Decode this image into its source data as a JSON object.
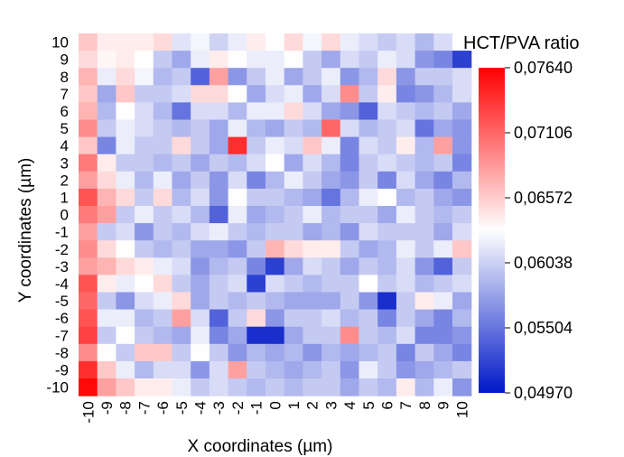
{
  "chart_data": {
    "type": "heatmap",
    "title": "",
    "xlabel": "X coordinates (µm)",
    "ylabel": "Y coordinates (µm)",
    "x": [
      "-10",
      "-9",
      "-8",
      "-7",
      "-6",
      "-5",
      "-4",
      "-3",
      "-2",
      "-1",
      "0",
      "1",
      "2",
      "3",
      "4",
      "5",
      "6",
      "7",
      "8",
      "9",
      "10"
    ],
    "y": [
      "10",
      "9",
      "8",
      "7",
      "6",
      "5",
      "4",
      "3",
      "2",
      "1",
      "0",
      "-1",
      "-2",
      "-3",
      "-4",
      "-5",
      "-6",
      "-7",
      "-8",
      "-9",
      "-10"
    ],
    "colorbar": {
      "title": "HCT/PVA ratio",
      "range": [
        0.0497,
        0.0764
      ],
      "ticks": [
        "0,07640",
        "0,07106",
        "0,06572",
        "0,06038",
        "0,05504",
        "0,04970"
      ],
      "colors": {
        "low": "#0018c8",
        "mid": "#ffffff",
        "high": "#ff0000"
      }
    },
    "grid": false,
    "legend": "right",
    "values": [
      [
        0.066,
        0.064,
        0.064,
        0.064,
        0.065,
        0.0615,
        0.0625,
        0.0605,
        0.062,
        0.064,
        0.063,
        0.065,
        0.0625,
        0.065,
        0.062,
        0.061,
        0.06,
        0.061,
        0.059,
        0.061,
        0.063
      ],
      [
        0.065,
        0.0635,
        0.064,
        0.063,
        0.06,
        0.058,
        0.062,
        0.064,
        0.063,
        0.062,
        0.062,
        0.063,
        0.06,
        0.058,
        0.061,
        0.06,
        0.062,
        0.061,
        0.057,
        0.056,
        0.052
      ],
      [
        0.067,
        0.062,
        0.065,
        0.0625,
        0.059,
        0.06,
        0.054,
        0.068,
        0.057,
        0.06,
        0.062,
        0.058,
        0.06,
        0.062,
        0.057,
        0.059,
        0.065,
        0.057,
        0.06,
        0.06,
        0.061
      ],
      [
        0.066,
        0.058,
        0.066,
        0.06,
        0.06,
        0.061,
        0.065,
        0.065,
        0.063,
        0.058,
        0.061,
        0.062,
        0.058,
        0.061,
        0.069,
        0.06,
        0.064,
        0.056,
        0.057,
        0.059,
        0.061
      ],
      [
        0.067,
        0.059,
        0.063,
        0.061,
        0.059,
        0.055,
        0.061,
        0.061,
        0.059,
        0.062,
        0.062,
        0.065,
        0.061,
        0.058,
        0.057,
        0.054,
        0.061,
        0.06,
        0.059,
        0.06,
        0.058
      ],
      [
        0.069,
        0.06,
        0.062,
        0.061,
        0.06,
        0.059,
        0.06,
        0.058,
        0.062,
        0.059,
        0.058,
        0.06,
        0.059,
        0.071,
        0.061,
        0.059,
        0.06,
        0.061,
        0.055,
        0.058,
        0.057
      ],
      [
        0.066,
        0.056,
        0.062,
        0.06,
        0.06,
        0.065,
        0.06,
        0.058,
        0.074,
        0.06,
        0.062,
        0.061,
        0.066,
        0.062,
        0.056,
        0.061,
        0.06,
        0.064,
        0.059,
        0.068,
        0.057
      ],
      [
        0.07,
        0.064,
        0.06,
        0.06,
        0.059,
        0.06,
        0.058,
        0.06,
        0.059,
        0.061,
        0.063,
        0.058,
        0.061,
        0.059,
        0.056,
        0.06,
        0.061,
        0.06,
        0.059,
        0.06,
        0.056
      ],
      [
        0.068,
        0.065,
        0.062,
        0.059,
        0.062,
        0.058,
        0.06,
        0.057,
        0.061,
        0.056,
        0.059,
        0.062,
        0.06,
        0.058,
        0.057,
        0.06,
        0.056,
        0.061,
        0.058,
        0.056,
        0.059
      ],
      [
        0.072,
        0.067,
        0.065,
        0.06,
        0.065,
        0.059,
        0.061,
        0.057,
        0.063,
        0.06,
        0.06,
        0.059,
        0.058,
        0.055,
        0.059,
        0.062,
        0.063,
        0.059,
        0.06,
        0.058,
        0.057
      ],
      [
        0.07,
        0.068,
        0.06,
        0.062,
        0.06,
        0.061,
        0.059,
        0.054,
        0.062,
        0.058,
        0.059,
        0.06,
        0.062,
        0.059,
        0.06,
        0.06,
        0.058,
        0.062,
        0.06,
        0.059,
        0.06
      ],
      [
        0.068,
        0.06,
        0.061,
        0.057,
        0.06,
        0.059,
        0.061,
        0.062,
        0.06,
        0.059,
        0.06,
        0.06,
        0.058,
        0.059,
        0.057,
        0.061,
        0.06,
        0.06,
        0.06,
        0.058,
        0.061
      ],
      [
        0.069,
        0.065,
        0.063,
        0.06,
        0.059,
        0.06,
        0.058,
        0.058,
        0.057,
        0.06,
        0.067,
        0.065,
        0.064,
        0.064,
        0.06,
        0.058,
        0.059,
        0.062,
        0.06,
        0.062,
        0.066
      ],
      [
        0.068,
        0.067,
        0.065,
        0.064,
        0.062,
        0.061,
        0.057,
        0.059,
        0.06,
        0.056,
        0.052,
        0.058,
        0.061,
        0.06,
        0.058,
        0.06,
        0.059,
        0.061,
        0.057,
        0.054,
        0.06
      ],
      [
        0.072,
        0.064,
        0.062,
        0.063,
        0.065,
        0.06,
        0.058,
        0.06,
        0.061,
        0.052,
        0.061,
        0.06,
        0.059,
        0.06,
        0.06,
        0.063,
        0.06,
        0.061,
        0.059,
        0.06,
        0.061
      ],
      [
        0.071,
        0.06,
        0.057,
        0.061,
        0.062,
        0.065,
        0.058,
        0.06,
        0.059,
        0.06,
        0.059,
        0.058,
        0.058,
        0.058,
        0.06,
        0.057,
        0.051,
        0.06,
        0.064,
        0.062,
        0.058
      ],
      [
        0.072,
        0.062,
        0.062,
        0.059,
        0.06,
        0.068,
        0.061,
        0.054,
        0.06,
        0.065,
        0.057,
        0.06,
        0.06,
        0.061,
        0.059,
        0.06,
        0.056,
        0.06,
        0.058,
        0.056,
        0.059
      ],
      [
        0.073,
        0.06,
        0.063,
        0.06,
        0.059,
        0.058,
        0.062,
        0.056,
        0.058,
        0.051,
        0.051,
        0.058,
        0.06,
        0.06,
        0.069,
        0.06,
        0.059,
        0.061,
        0.056,
        0.056,
        0.057
      ],
      [
        0.069,
        0.063,
        0.06,
        0.066,
        0.066,
        0.06,
        0.063,
        0.06,
        0.057,
        0.059,
        0.058,
        0.059,
        0.057,
        0.059,
        0.058,
        0.059,
        0.06,
        0.056,
        0.06,
        0.058,
        0.056
      ],
      [
        0.074,
        0.066,
        0.062,
        0.059,
        0.061,
        0.061,
        0.057,
        0.061,
        0.068,
        0.06,
        0.059,
        0.058,
        0.059,
        0.06,
        0.057,
        0.062,
        0.06,
        0.057,
        0.058,
        0.059,
        0.06
      ],
      [
        0.076,
        0.068,
        0.066,
        0.064,
        0.064,
        0.062,
        0.06,
        0.061,
        0.06,
        0.059,
        0.06,
        0.059,
        0.06,
        0.06,
        0.058,
        0.06,
        0.059,
        0.064,
        0.059,
        0.062,
        0.057
      ]
    ]
  }
}
